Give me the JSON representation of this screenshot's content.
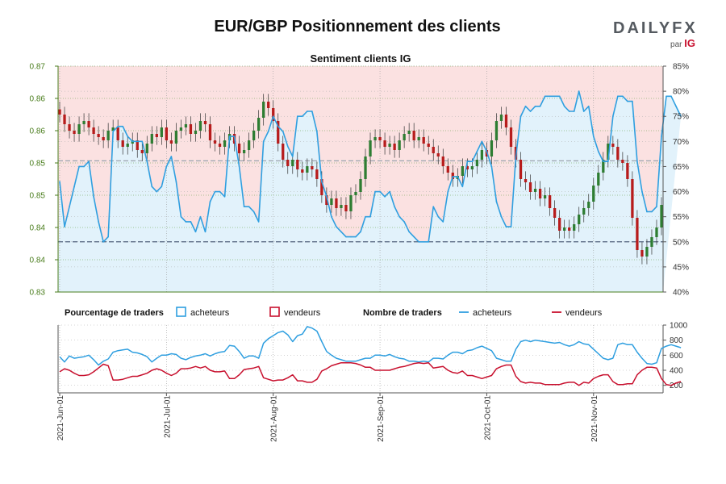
{
  "title": "EUR/GBP Positionnement des clients",
  "logo": {
    "wordmark": "DAILYFX",
    "by": "par",
    "ig": "IG"
  },
  "colors": {
    "buyers": "#2f9fe0",
    "sellers": "#c8102e",
    "up_candle": "#2e7d32",
    "down_candle": "#b71c1c",
    "bg_buy": "#e2f2fb",
    "bg_sell": "#fbe1e1",
    "left_axis": "#4a7d1d"
  },
  "chart_data": [
    {
      "type": "line",
      "subtitle": "Sentiment clients IG",
      "x_ticks": [
        "2021-Jun-01",
        "2021-Jul-01",
        "2021-Aug-01",
        "2021-Sep-01",
        "2021-Oct-01",
        "2021-Nov-01"
      ],
      "price_axis": {
        "ticks": [
          "0.87",
          "0.86",
          "0.86",
          "0.85",
          "0.85",
          "0.84",
          "0.84",
          "0.83"
        ],
        "range": [
          0.8325,
          0.8675
        ]
      },
      "pct_axis": {
        "ticks": [
          "85%",
          "80%",
          "75%",
          "70%",
          "65%",
          "60%",
          "55%",
          "50%",
          "45%",
          "40%"
        ],
        "range": [
          40,
          85
        ]
      },
      "candles": {
        "name": "EUR/GBP",
        "start": "2021-06-01",
        "freq": "trading-day",
        "close": [
          0.86,
          0.8585,
          0.8575,
          0.857,
          0.8585,
          0.859,
          0.858,
          0.857,
          0.8565,
          0.856,
          0.8575,
          0.858,
          0.856,
          0.855,
          0.8555,
          0.856,
          0.8545,
          0.854,
          0.8555,
          0.857,
          0.8565,
          0.858,
          0.856,
          0.8555,
          0.8575,
          0.858,
          0.8585,
          0.857,
          0.8575,
          0.859,
          0.8585,
          0.856,
          0.8555,
          0.855,
          0.856,
          0.857,
          0.8555,
          0.854,
          0.8545,
          0.856,
          0.8575,
          0.8595,
          0.862,
          0.861,
          0.859,
          0.8555,
          0.853,
          0.852,
          0.853,
          0.8515,
          0.851,
          0.852,
          0.8515,
          0.85,
          0.8475,
          0.846,
          0.847,
          0.8455,
          0.846,
          0.845,
          0.8475,
          0.848,
          0.85,
          0.8535,
          0.856,
          0.8565,
          0.856,
          0.855,
          0.8555,
          0.8545,
          0.856,
          0.857,
          0.8575,
          0.856,
          0.8565,
          0.8555,
          0.855,
          0.854,
          0.8535,
          0.852,
          0.851,
          0.85,
          0.8505,
          0.852,
          0.8515,
          0.852,
          0.853,
          0.8545,
          0.8535,
          0.856,
          0.859,
          0.86,
          0.858,
          0.855,
          0.853,
          0.85,
          0.8495,
          0.848,
          0.8485,
          0.847,
          0.8475,
          0.8455,
          0.844,
          0.842,
          0.8425,
          0.842,
          0.843,
          0.8445,
          0.8455,
          0.8465,
          0.849,
          0.851,
          0.853,
          0.8555,
          0.855,
          0.853,
          0.8525,
          0.85,
          0.844,
          0.839,
          0.838,
          0.8395,
          0.841,
          0.8425,
          0.846
        ]
      },
      "series": [
        {
          "name": "acheteurs",
          "values": [
            62,
            53,
            57,
            61,
            65,
            65,
            66,
            59,
            54,
            50,
            51,
            72,
            73,
            73,
            71,
            70,
            70,
            70,
            66,
            61,
            60,
            61,
            65,
            67,
            62,
            55,
            54,
            54,
            52,
            55,
            52,
            58,
            60,
            60,
            59,
            71,
            71,
            65,
            57,
            57,
            56,
            54,
            70,
            72,
            75,
            73,
            72,
            69,
            67,
            75,
            75,
            76,
            76,
            72,
            62,
            59,
            55,
            53,
            52,
            51,
            51,
            51,
            52,
            55,
            55,
            60,
            60,
            59,
            60,
            57,
            55,
            54,
            52,
            51,
            50,
            50,
            50,
            57,
            55,
            54,
            60,
            63,
            63,
            61,
            66,
            66,
            68,
            70,
            68,
            65,
            58,
            55,
            53,
            53,
            67,
            75,
            77,
            76,
            77,
            77,
            79,
            79,
            79,
            79,
            77,
            76,
            76,
            80,
            76,
            77,
            71,
            68,
            66,
            66,
            75,
            79,
            79,
            78,
            78,
            66,
            60,
            56,
            56,
            57,
            71,
            79,
            79,
            77,
            75
          ]
        },
        {
          "name": "vendeurs",
          "values": [
            38,
            47,
            43,
            39,
            35,
            35,
            34,
            41,
            46,
            50,
            49,
            28,
            27,
            27,
            29,
            30,
            30,
            30,
            34,
            39,
            40,
            39,
            35,
            33,
            38,
            45,
            46,
            46,
            48,
            45,
            48,
            42,
            40,
            40,
            41,
            29,
            29,
            35,
            43,
            43,
            44,
            46,
            30,
            28,
            25,
            27,
            28,
            31,
            33,
            25,
            25,
            24,
            24,
            28,
            38,
            41,
            45,
            47,
            48,
            49,
            49,
            49,
            48,
            45,
            45,
            40,
            40,
            41,
            40,
            43,
            45,
            46,
            48,
            49,
            50,
            50,
            50,
            43,
            45,
            46,
            40,
            37,
            37,
            39,
            34,
            34,
            32,
            30,
            32,
            35,
            42,
            45,
            47,
            47,
            33,
            25,
            23,
            24,
            23,
            23,
            21,
            21,
            21,
            21,
            23,
            24,
            24,
            20,
            24,
            23,
            29,
            32,
            34,
            34,
            25,
            21,
            21,
            22,
            22,
            34,
            40,
            44,
            44,
            43,
            29,
            21,
            21,
            23,
            25
          ]
        }
      ]
    },
    {
      "type": "line",
      "legend_title": "Nombre de traders",
      "pct_legend_title": "Pourcentage de traders",
      "y_ticks": [
        "1000",
        "800",
        "600",
        "400",
        "200"
      ],
      "ylim": [
        100,
        1000
      ],
      "series": [
        {
          "name": "acheteurs",
          "values": [
            580,
            510,
            590,
            560,
            570,
            580,
            600,
            540,
            470,
            520,
            550,
            640,
            660,
            670,
            680,
            640,
            630,
            610,
            580,
            510,
            560,
            600,
            600,
            620,
            610,
            560,
            540,
            570,
            590,
            600,
            620,
            590,
            620,
            640,
            650,
            730,
            720,
            650,
            560,
            590,
            590,
            560,
            760,
            820,
            860,
            900,
            920,
            870,
            780,
            860,
            880,
            980,
            960,
            920,
            780,
            650,
            600,
            560,
            540,
            520,
            520,
            520,
            540,
            560,
            560,
            600,
            600,
            590,
            610,
            580,
            560,
            550,
            520,
            520,
            510,
            520,
            510,
            560,
            560,
            550,
            600,
            640,
            640,
            620,
            660,
            670,
            700,
            720,
            690,
            660,
            560,
            540,
            520,
            520,
            680,
            780,
            800,
            780,
            800,
            790,
            780,
            770,
            760,
            770,
            740,
            720,
            740,
            780,
            750,
            740,
            680,
            620,
            560,
            540,
            560,
            740,
            760,
            740,
            740,
            640,
            560,
            490,
            480,
            500,
            690,
            720,
            740,
            720,
            700
          ]
        },
        {
          "name": "vendeurs",
          "values": [
            380,
            420,
            400,
            360,
            330,
            330,
            340,
            380,
            430,
            480,
            460,
            270,
            270,
            280,
            300,
            320,
            320,
            340,
            360,
            400,
            420,
            400,
            360,
            330,
            360,
            420,
            420,
            430,
            450,
            430,
            450,
            400,
            380,
            380,
            390,
            290,
            290,
            340,
            410,
            420,
            430,
            450,
            300,
            280,
            260,
            270,
            270,
            300,
            340,
            260,
            260,
            240,
            240,
            280,
            390,
            420,
            460,
            480,
            500,
            500,
            500,
            490,
            470,
            440,
            440,
            400,
            400,
            400,
            400,
            420,
            440,
            450,
            470,
            490,
            500,
            490,
            500,
            430,
            440,
            450,
            400,
            370,
            360,
            390,
            330,
            330,
            310,
            290,
            310,
            330,
            420,
            450,
            470,
            470,
            320,
            250,
            230,
            240,
            230,
            230,
            210,
            210,
            210,
            210,
            230,
            240,
            240,
            200,
            240,
            230,
            290,
            320,
            340,
            340,
            250,
            210,
            210,
            220,
            220,
            340,
            400,
            440,
            440,
            430,
            290,
            210,
            200,
            230,
            250
          ]
        }
      ]
    }
  ]
}
